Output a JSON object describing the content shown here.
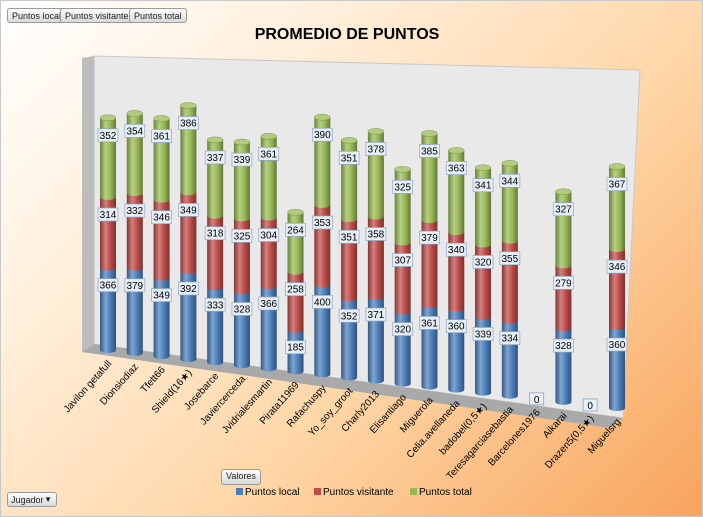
{
  "pivot": {
    "field_buttons": [
      "Puntos local",
      "Puntos visitante",
      "Puntos total"
    ],
    "values_button": "Valores",
    "row_field_button": "Jugador"
  },
  "colors": {
    "local": "#4a7ebb",
    "visitante": "#be4b48",
    "total": "#98b954",
    "wall": "#e9e9e9"
  },
  "chart_data": {
    "type": "bar",
    "stacked": true,
    "title": "PROMEDIO DE PUNTOS",
    "categories": [
      "Javilon getafull",
      "Dionsiodiaz",
      "Tfett66",
      "Shield(16★)",
      "Josebarce",
      "Javiercerceda",
      "Jvidrialesmartin",
      "Pirata11969",
      "Rafachuspy",
      "Yo_soy_groot",
      "Charly2013",
      "Elisantiago",
      "Miguerola",
      "Celia.avellaneda",
      "badobel(0,5★)",
      "Teresagarciasebastia",
      "Barcelones1976",
      "Aikarai",
      "Drazen5(0,5★)",
      "Miguelsrg"
    ],
    "series": [
      {
        "name": "Puntos local",
        "values": [
          366,
          379,
          349,
          392,
          333,
          328,
          366,
          185,
          400,
          352,
          371,
          320,
          361,
          360,
          339,
          334,
          0,
          328,
          0,
          360
        ]
      },
      {
        "name": "Puntos visitante",
        "values": [
          314,
          332,
          346,
          349,
          318,
          325,
          304,
          258,
          353,
          351,
          358,
          307,
          379,
          340,
          320,
          355,
          0,
          279,
          0,
          346
        ]
      },
      {
        "name": "Puntos total",
        "values": [
          352,
          354,
          361,
          386,
          337,
          339,
          361,
          264,
          390,
          351,
          378,
          325,
          385,
          363,
          341,
          344,
          0,
          327,
          0,
          367
        ]
      }
    ],
    "legend": [
      "Puntos local",
      "Puntos visitante",
      "Puntos total"
    ],
    "legend_position": "bottom"
  }
}
